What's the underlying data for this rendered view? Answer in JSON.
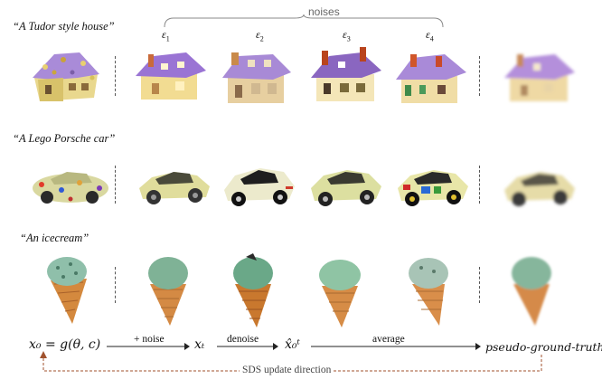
{
  "brace_label": "noises",
  "noise_labels": [
    {
      "sym": "ε",
      "idx": "1"
    },
    {
      "sym": "ε",
      "idx": "2"
    },
    {
      "sym": "ε",
      "idx": "3"
    },
    {
      "sym": "ε",
      "idx": "4"
    }
  ],
  "rows": [
    {
      "prompt": "“A Tudor style house”",
      "subject": "house"
    },
    {
      "prompt": "“A Lego Porsche car”",
      "subject": "car"
    },
    {
      "prompt": "“An icecream”",
      "subject": "icecream"
    }
  ],
  "flow": {
    "x0_eq": "x₀ = g(θ, c)",
    "add_noise": "+ noise",
    "xt": "xₜ",
    "denoise": "denoise",
    "x0hat": "x̂₀ᵗ",
    "average": "average",
    "pseudo": "pseudo-ground-truth",
    "sds": "SDS update direction"
  },
  "colors": {
    "roof": "#9b7fd6",
    "wall": "#f3dd9c",
    "car_body": "#e4e0a8",
    "cone": "#d9843b",
    "scoop": "#7fae98",
    "sds_arrow": "#a0522d"
  }
}
